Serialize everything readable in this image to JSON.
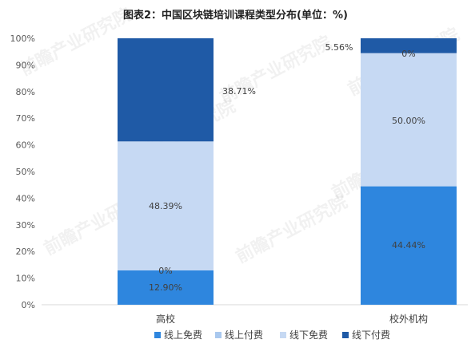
{
  "chart_data": {
    "type": "bar",
    "stacked": true,
    "title": "图表2：中国区块链培训课程类型分布(单位：%)",
    "categories": [
      "高校",
      "校外机构"
    ],
    "series": [
      {
        "name": "线上免费",
        "values": [
          12.9,
          44.44
        ],
        "labels": [
          "12.90%",
          "44.44%"
        ]
      },
      {
        "name": "线上付费",
        "values": [
          0,
          0
        ],
        "labels": [
          "0%",
          ""
        ]
      },
      {
        "name": "线下免费",
        "values": [
          48.39,
          50.0
        ],
        "labels": [
          "48.39%",
          "50.00%"
        ]
      },
      {
        "name": "线下付费",
        "values": [
          38.71,
          5.56
        ],
        "labels": [
          "38.71%",
          "5.56%"
        ]
      }
    ],
    "top_zero_label": "0%",
    "ylim": [
      0,
      100
    ],
    "yticks": [
      "0%",
      "10%",
      "20%",
      "30%",
      "40%",
      "50%",
      "60%",
      "70%",
      "80%",
      "90%",
      "100%"
    ],
    "legend_position": "bottom",
    "grid": false
  },
  "colors": {
    "线上免费": "#2e86de",
    "线上付费": "#a9c8ee",
    "线下免费": "#c6d9f3",
    "线下付费": "#1f5aa6"
  },
  "watermark": "前瞻产业研究院"
}
